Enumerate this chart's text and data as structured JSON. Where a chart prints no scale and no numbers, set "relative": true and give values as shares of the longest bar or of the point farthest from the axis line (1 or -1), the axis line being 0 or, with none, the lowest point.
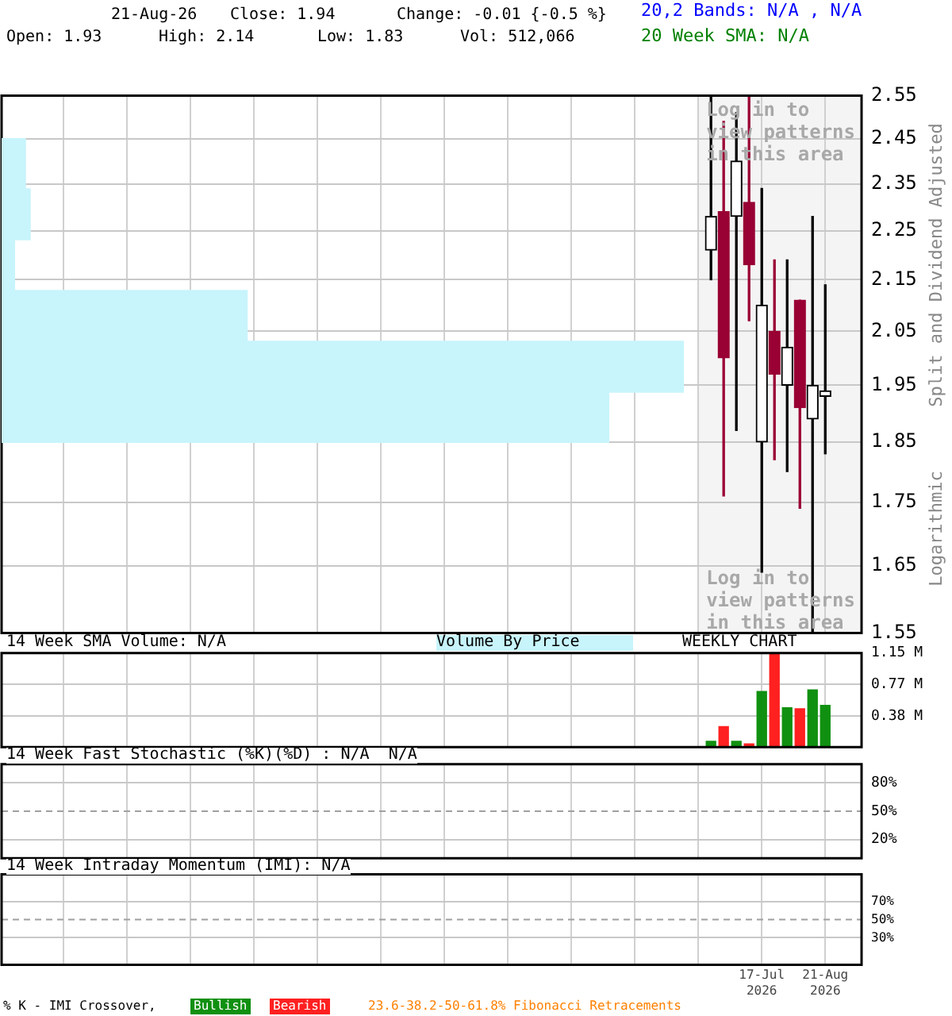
{
  "chart_data": [
    {
      "type": "candlestick",
      "ylabel": "Split and Dividend Adjusted",
      "annotations": [
        "21-Aug-26",
        "Close: 1.94",
        "Change: -0.01 {-0.5 %}",
        "Open: 1.93",
        "High: 2.14",
        "Low: 1.83",
        "Vol: 512,066",
        "20,2 Bands: N/A , N/A",
        "20 Week SMA: N/A",
        "WEEKLY CHART",
        "Log in to view patterns in this area",
        "Log in to view patterns in this area",
        "Logarithmic"
      ],
      "x": [
        "2026-06-19",
        "2026-06-26",
        "2026-07-03",
        "2026-07-10",
        "2026-07-17",
        "2026-07-24",
        "2026-07-31",
        "2026-08-07",
        "2026-08-14",
        "2026-08-21"
      ],
      "ohlc": [
        [
          2.21,
          2.55,
          2.15,
          2.28
        ],
        [
          2.29,
          2.49,
          1.76,
          2.0
        ],
        [
          2.28,
          2.51,
          1.87,
          2.4
        ],
        [
          2.31,
          2.55,
          2.07,
          2.18
        ],
        [
          1.85,
          2.34,
          1.64,
          2.1
        ],
        [
          2.05,
          2.19,
          1.82,
          1.97
        ],
        [
          1.95,
          2.19,
          1.8,
          2.02
        ],
        [
          2.11,
          2.11,
          1.74,
          1.91
        ],
        [
          1.89,
          2.28,
          1.55,
          1.95
        ],
        [
          1.93,
          2.14,
          1.83,
          1.94
        ]
      ],
      "colors": [
        "#000000",
        "#990033",
        "#000000",
        "#990033",
        "#000000",
        "#990033",
        "#000000",
        "#990033",
        "#000000",
        "#000000"
      ],
      "xlim": [
        "2025-05-24",
        "2026-09-10"
      ],
      "xticks": [
        {
          "value": "2025-06-27",
          "label": null
        },
        {
          "value": "2025-08-01",
          "label": null
        },
        {
          "value": "2025-09-05",
          "label": null
        },
        {
          "value": "2025-10-10",
          "label": null
        },
        {
          "value": "2025-11-14",
          "label": null
        },
        {
          "value": "2025-12-19",
          "label": null
        },
        {
          "value": "2026-01-23",
          "label": null
        },
        {
          "value": "2026-02-27",
          "label": null
        },
        {
          "value": "2026-04-03",
          "label": null
        },
        {
          "value": "2026-05-08",
          "label": null
        },
        {
          "value": "2026-06-12",
          "label": null
        },
        {
          "value": "2026-07-17",
          "label": null
        },
        {
          "value": "2026-08-21",
          "label": null
        }
      ],
      "ylim": [
        1.55,
        2.55
      ],
      "yticks": [
        1.55,
        1.65,
        1.75,
        1.85,
        1.95,
        2.05,
        2.15,
        2.25,
        2.35,
        2.45,
        2.55
      ],
      "log": true,
      "grid": true,
      "tick_labels": "y",
      "bands": [
        {
          "axis": "x",
          "from": "2026-06-12",
          "to": "2026-09-10",
          "color": "#f4f4f4"
        }
      ]
    },
    {
      "type": "bar",
      "title": "Volume By Price",
      "orientation": "horizontal",
      "relative": true,
      "color": "#c8f4fc",
      "categories": [
        null,
        null,
        null,
        null,
        null,
        null
      ],
      "values": [
        0.035,
        0.042,
        0.019,
        0.36,
        1,
        0.89
      ]
    },
    {
      "type": "bar",
      "title": "14 Week SMA Volume: N/A",
      "x": [
        "2026-06-19",
        "2026-06-26",
        "2026-07-03",
        "2026-07-10",
        "2026-07-17",
        "2026-07-24",
        "2026-07-31",
        "2026-08-07",
        "2026-08-14",
        "2026-08-21"
      ],
      "values": [
        0.07,
        0.25,
        0.07,
        0.04,
        0.68,
        1.15,
        0.48,
        0.47,
        0.7,
        0.51
      ],
      "colors": [
        "#109010",
        "#ff2020",
        "#109010",
        "#ff2020",
        "#109010",
        "#ff2020",
        "#109010",
        "#ff2020",
        "#109010",
        "#109010"
      ],
      "xlim": [
        "2025-05-24",
        "2026-09-10"
      ],
      "xticks": [
        {
          "value": "2025-06-27",
          "label": null
        },
        {
          "value": "2025-08-01",
          "label": null
        },
        {
          "value": "2025-09-05",
          "label": null
        },
        {
          "value": "2025-10-10",
          "label": null
        },
        {
          "value": "2025-11-14",
          "label": null
        },
        {
          "value": "2025-12-19",
          "label": null
        },
        {
          "value": "2026-01-23",
          "label": null
        },
        {
          "value": "2026-02-27",
          "label": null
        },
        {
          "value": "2026-04-03",
          "label": null
        },
        {
          "value": "2026-05-08",
          "label": null
        },
        {
          "value": "2026-06-12",
          "label": null
        },
        {
          "value": "2026-07-17",
          "label": null
        },
        {
          "value": "2026-08-21",
          "label": null
        }
      ],
      "ylim": [
        0,
        1.15
      ],
      "yticks": [
        {
          "value": 0.38,
          "label": "0.38 M"
        },
        {
          "value": 0.77,
          "label": "0.77 M"
        },
        {
          "value": 1.15,
          "label": "1.15 M"
        }
      ],
      "grid": true,
      "tick_labels": "y"
    },
    {
      "type": "line",
      "title": "14 Week Fast Stochastic (%K)(%D) : N/A  N/A",
      "xlim": [
        "2025-05-24",
        "2026-09-10"
      ],
      "xticks": [
        {
          "value": "2025-06-27",
          "label": null
        },
        {
          "value": "2025-08-01",
          "label": null
        },
        {
          "value": "2025-09-05",
          "label": null
        },
        {
          "value": "2025-10-10",
          "label": null
        },
        {
          "value": "2025-11-14",
          "label": null
        },
        {
          "value": "2025-12-19",
          "label": null
        },
        {
          "value": "2026-01-23",
          "label": null
        },
        {
          "value": "2026-02-27",
          "label": null
        },
        {
          "value": "2026-04-03",
          "label": null
        },
        {
          "value": "2026-05-08",
          "label": null
        },
        {
          "value": "2026-06-12",
          "label": null
        },
        {
          "value": "2026-07-17",
          "label": null
        },
        {
          "value": "2026-08-21",
          "label": null
        }
      ],
      "ylim": [
        0,
        100
      ],
      "yticks": [
        {
          "value": 20,
          "label": "20%"
        },
        {
          "value": 50,
          "label": "50%"
        },
        {
          "value": 80,
          "label": "80%"
        }
      ],
      "grid": true,
      "tick_labels": "y",
      "ref_lines": [
        {
          "axis": "y",
          "value": 50,
          "line_style": "dashed",
          "color": "#a0a0a0"
        }
      ]
    },
    {
      "type": "line",
      "title": "14 Week Intraday Momentum (IMI): N/A",
      "annotations": [
        "% K - IMI Crossover,",
        "Bullish",
        "Bearish",
        "23.6-38.2-50-61.8% Fibonacci Retracements"
      ],
      "xlim": [
        "2025-05-24",
        "2026-09-10"
      ],
      "xticks": [
        {
          "value": "2025-06-27",
          "label": null
        },
        {
          "value": "2025-08-01",
          "label": null
        },
        {
          "value": "2025-09-05",
          "label": null
        },
        {
          "value": "2025-10-10",
          "label": null
        },
        {
          "value": "2025-11-14",
          "label": null
        },
        {
          "value": "2025-12-19",
          "label": null
        },
        {
          "value": "2026-01-23",
          "label": null
        },
        {
          "value": "2026-02-27",
          "label": null
        },
        {
          "value": "2026-04-03",
          "label": null
        },
        {
          "value": "2026-05-08",
          "label": null
        },
        {
          "value": "2026-06-12",
          "label": null
        },
        {
          "value": "2026-07-17",
          "label": "17-Jul 2026"
        },
        {
          "value": "2026-08-21",
          "label": "21-Aug 2026"
        }
      ],
      "ylim": [
        0,
        100
      ],
      "yticks": [
        {
          "value": 30,
          "label": "30%"
        },
        {
          "value": 50,
          "label": "50%"
        },
        {
          "value": 70,
          "label": "70%"
        }
      ],
      "grid": true,
      "ref_lines": [
        {
          "axis": "y",
          "value": 50,
          "line_style": "dashed",
          "color": "#a0a0a0"
        }
      ]
    }
  ]
}
